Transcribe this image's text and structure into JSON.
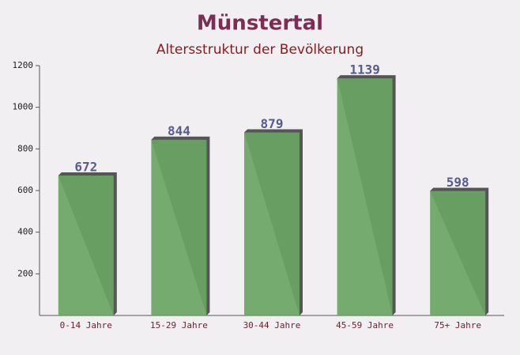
{
  "chart_data": {
    "type": "bar",
    "title": "Münstertal",
    "subtitle": "Altersstruktur der Bevölkerung",
    "categories": [
      "0-14 Jahre",
      "15-29 Jahre",
      "30-44 Jahre",
      "45-59 Jahre",
      "75+ Jahre"
    ],
    "values": [
      672,
      844,
      879,
      1139,
      598
    ],
    "color": "#6aa564",
    "ylim": [
      0,
      1200
    ],
    "yticks": [
      200,
      400,
      600,
      800,
      1000,
      1200
    ]
  }
}
